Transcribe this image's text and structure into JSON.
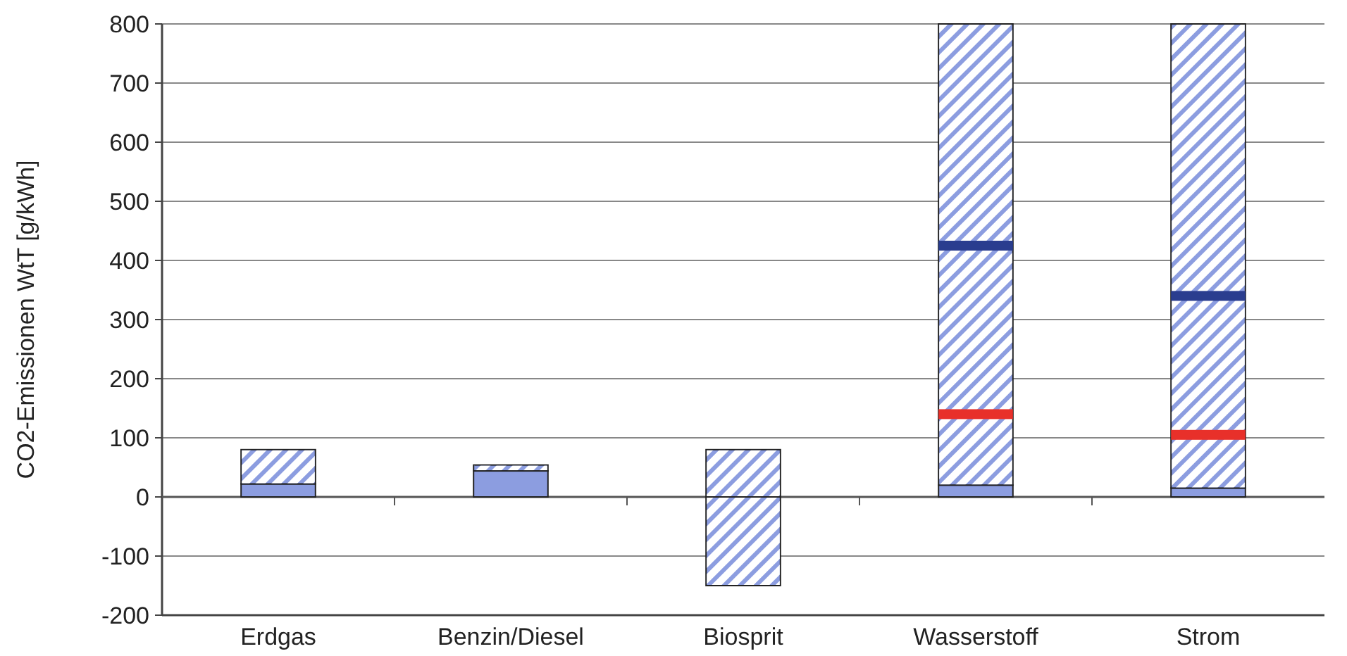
{
  "chart_data": {
    "type": "bar",
    "ylabel": "CO2-Emissionen WtT [g/kWh]",
    "categories": [
      "Erdgas",
      "Benzin/Diesel",
      "Biosprit",
      "Wasserstoff",
      "Strom"
    ],
    "stacked": true,
    "series": [
      {
        "color": "#8c9de0",
        "values": [
          22,
          44,
          null,
          20,
          15
        ]
      },
      {
        "color": "#8c9de0",
        "values": [
          58,
          10,
          80,
          780,
          785
        ]
      },
      {
        "color": "#8c9de0",
        "values": [
          null,
          null,
          -150,
          null,
          null
        ]
      },
      {
        "type": "scatter",
        "color": "#e8302a",
        "values": [
          null,
          null,
          null,
          140,
          105
        ]
      },
      {
        "type": "scatter",
        "color": "#2a3d8f",
        "values": [
          null,
          null,
          null,
          425,
          340
        ]
      }
    ],
    "ylim": [
      -200,
      800
    ],
    "yticks": [
      -200,
      -100,
      0,
      100,
      200,
      300,
      400,
      500,
      600,
      700,
      800
    ],
    "grid": "y"
  }
}
